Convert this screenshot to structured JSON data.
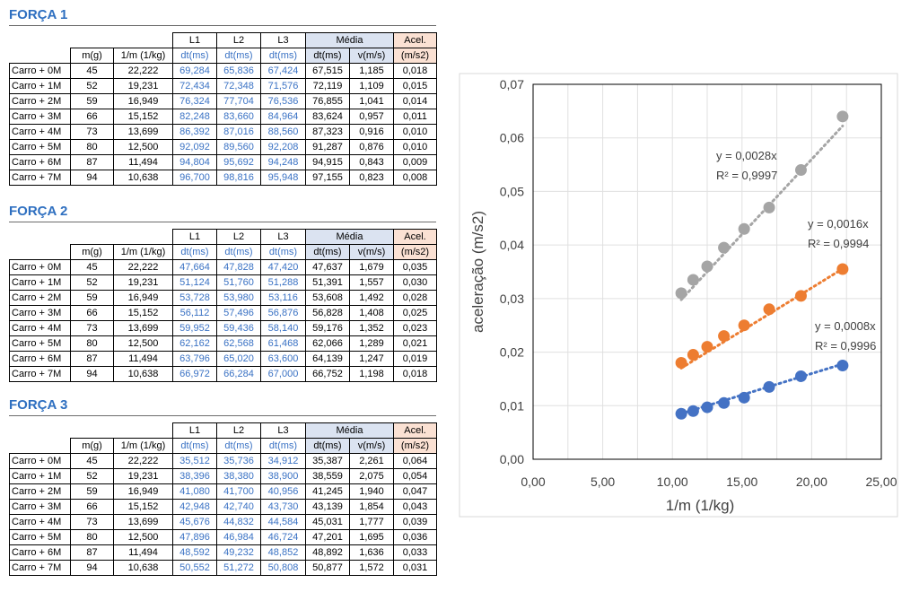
{
  "tables": [
    {
      "title": "FORÇA 1",
      "header_top": [
        "L1",
        "L2",
        "L3",
        "Média",
        "Acel."
      ],
      "header_sub": [
        "m(g)",
        "1/m (1/kg)",
        "dt(ms)",
        "dt(ms)",
        "dt(ms)",
        "dt(ms)",
        "v(m/s)",
        "(m/s2)"
      ],
      "rows": [
        [
          "Carro + 0M",
          "45",
          "22,222",
          "69,284",
          "65,836",
          "67,424",
          "67,515",
          "1,185",
          "0,018"
        ],
        [
          "Carro + 1M",
          "52",
          "19,231",
          "72,434",
          "72,348",
          "71,576",
          "72,119",
          "1,109",
          "0,015"
        ],
        [
          "Carro + 2M",
          "59",
          "16,949",
          "76,324",
          "77,704",
          "76,536",
          "76,855",
          "1,041",
          "0,014"
        ],
        [
          "Carro + 3M",
          "66",
          "15,152",
          "82,248",
          "83,660",
          "84,964",
          "83,624",
          "0,957",
          "0,011"
        ],
        [
          "Carro + 4M",
          "73",
          "13,699",
          "86,392",
          "87,016",
          "88,560",
          "87,323",
          "0,916",
          "0,010"
        ],
        [
          "Carro + 5M",
          "80",
          "12,500",
          "92,092",
          "89,560",
          "92,208",
          "91,287",
          "0,876",
          "0,010"
        ],
        [
          "Carro + 6M",
          "87",
          "11,494",
          "94,804",
          "95,692",
          "94,248",
          "94,915",
          "0,843",
          "0,009"
        ],
        [
          "Carro + 7M",
          "94",
          "10,638",
          "96,700",
          "98,816",
          "95,948",
          "97,155",
          "0,823",
          "0,008"
        ]
      ]
    },
    {
      "title": "FORÇA 2",
      "header_top": [
        "L1",
        "L2",
        "L3",
        "Média",
        "Acel."
      ],
      "header_sub": [
        "m(g)",
        "1/m (1/kg)",
        "dt(ms)",
        "dt(ms)",
        "dt(ms)",
        "dt(ms)",
        "v(m/s)",
        "(m/s2)"
      ],
      "rows": [
        [
          "Carro + 0M",
          "45",
          "22,222",
          "47,664",
          "47,828",
          "47,420",
          "47,637",
          "1,679",
          "0,035"
        ],
        [
          "Carro + 1M",
          "52",
          "19,231",
          "51,124",
          "51,760",
          "51,288",
          "51,391",
          "1,557",
          "0,030"
        ],
        [
          "Carro + 2M",
          "59",
          "16,949",
          "53,728",
          "53,980",
          "53,116",
          "53,608",
          "1,492",
          "0,028"
        ],
        [
          "Carro + 3M",
          "66",
          "15,152",
          "56,112",
          "57,496",
          "56,876",
          "56,828",
          "1,408",
          "0,025"
        ],
        [
          "Carro + 4M",
          "73",
          "13,699",
          "59,952",
          "59,436",
          "58,140",
          "59,176",
          "1,352",
          "0,023"
        ],
        [
          "Carro + 5M",
          "80",
          "12,500",
          "62,162",
          "62,568",
          "61,468",
          "62,066",
          "1,289",
          "0,021"
        ],
        [
          "Carro + 6M",
          "87",
          "11,494",
          "63,796",
          "65,020",
          "63,600",
          "64,139",
          "1,247",
          "0,019"
        ],
        [
          "Carro + 7M",
          "94",
          "10,638",
          "66,972",
          "66,284",
          "67,000",
          "66,752",
          "1,198",
          "0,018"
        ]
      ]
    },
    {
      "title": "FORÇA 3",
      "header_top": [
        "L1",
        "L2",
        "L3",
        "Média",
        "Acel."
      ],
      "header_sub": [
        "m(g)",
        "1/m (1/kg)",
        "dt(ms)",
        "dt(ms)",
        "dt(ms)",
        "dt(ms)",
        "v(m/s)",
        "(m/s2)"
      ],
      "rows": [
        [
          "Carro + 0M",
          "45",
          "22,222",
          "35,512",
          "35,736",
          "34,912",
          "35,387",
          "2,261",
          "0,064"
        ],
        [
          "Carro + 1M",
          "52",
          "19,231",
          "38,396",
          "38,380",
          "38,900",
          "38,559",
          "2,075",
          "0,054"
        ],
        [
          "Carro + 2M",
          "59",
          "16,949",
          "41,080",
          "41,700",
          "40,956",
          "41,245",
          "1,940",
          "0,047"
        ],
        [
          "Carro + 3M",
          "66",
          "15,152",
          "42,948",
          "42,740",
          "43,730",
          "43,139",
          "1,854",
          "0,043"
        ],
        [
          "Carro + 4M",
          "73",
          "13,699",
          "45,676",
          "44,832",
          "44,584",
          "45,031",
          "1,777",
          "0,039"
        ],
        [
          "Carro + 5M",
          "80",
          "12,500",
          "47,896",
          "46,984",
          "46,724",
          "47,201",
          "1,695",
          "0,036"
        ],
        [
          "Carro + 6M",
          "87",
          "11,494",
          "48,592",
          "49,232",
          "48,852",
          "48,892",
          "1,636",
          "0,033"
        ],
        [
          "Carro + 7M",
          "94",
          "10,638",
          "50,552",
          "51,272",
          "50,808",
          "50,877",
          "1,572",
          "0,031"
        ]
      ]
    }
  ],
  "chart_data": {
    "type": "scatter",
    "title": "",
    "xlabel": "1/m (1/kg)",
    "ylabel": "aceleração (m/s2)",
    "xlim": [
      0,
      25
    ],
    "ylim": [
      0,
      0.07
    ],
    "xticks": [
      0,
      5,
      10,
      15,
      20,
      25
    ],
    "xtick_labels": [
      "0,00",
      "5,00",
      "10,00",
      "15,00",
      "20,00",
      "25,00"
    ],
    "yticks": [
      0,
      0.01,
      0.02,
      0.03,
      0.04,
      0.05,
      0.06,
      0.07
    ],
    "ytick_labels": [
      "0,00",
      "0,01",
      "0,02",
      "0,03",
      "0,04",
      "0,05",
      "0,06",
      "0,07"
    ],
    "grid": true,
    "series": [
      {
        "color": "#a5a5a5",
        "x": [
          10.638,
          11.494,
          12.5,
          13.699,
          15.152,
          16.949,
          19.231,
          22.222
        ],
        "y": [
          0.031,
          0.0335,
          0.036,
          0.0395,
          0.043,
          0.047,
          0.054,
          0.064
        ],
        "trend_slope": 0.0028,
        "equation": "y = 0,0028x",
        "r2": "R² = 0,9997"
      },
      {
        "color": "#ed7d31",
        "x": [
          10.638,
          11.494,
          12.5,
          13.699,
          15.152,
          16.949,
          19.231,
          22.222
        ],
        "y": [
          0.018,
          0.0195,
          0.021,
          0.023,
          0.025,
          0.028,
          0.0305,
          0.0355
        ],
        "trend_slope": 0.0016,
        "equation": "y = 0,0016x",
        "r2": "R² = 0,9994"
      },
      {
        "color": "#4472c4",
        "x": [
          10.638,
          11.494,
          12.5,
          13.699,
          15.152,
          16.949,
          19.231,
          22.222
        ],
        "y": [
          0.0085,
          0.009,
          0.0097,
          0.0105,
          0.0115,
          0.0135,
          0.0155,
          0.0175
        ],
        "trend_slope": 0.0008,
        "equation": "y = 0,0008x",
        "r2": "R² = 0,9996"
      }
    ]
  }
}
